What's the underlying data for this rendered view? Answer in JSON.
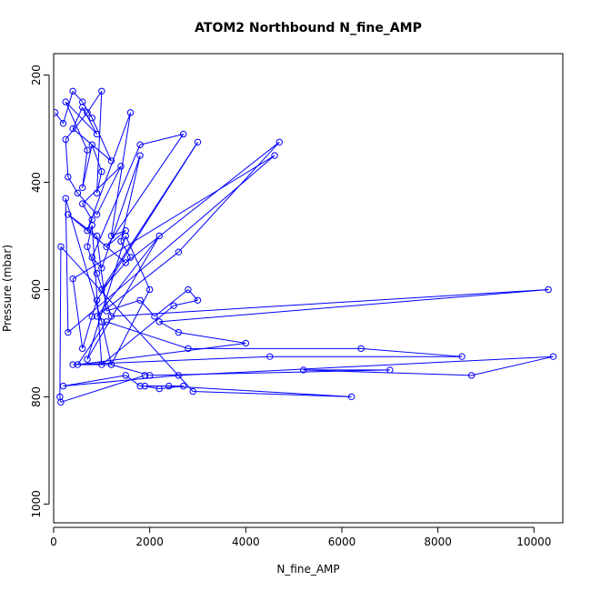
{
  "chart_data": {
    "type": "line",
    "title": "ATOM2 Northbound N_fine_AMP",
    "xlabel": "N_fine_AMP",
    "ylabel": "Pressure (mbar)",
    "xlim": [
      0,
      10600
    ],
    "ylim": [
      1035,
      160
    ],
    "y_reversed": true,
    "x_ticks": [
      0,
      2000,
      4000,
      6000,
      8000,
      10000
    ],
    "y_ticks": [
      200,
      400,
      600,
      800,
      1000
    ],
    "line_color": "#0000ff",
    "marker": "open-circle",
    "grid": false,
    "series": [
      {
        "x": [
          30,
          200,
          400,
          600,
          800,
          1200,
          400,
          600,
          900,
          250,
          700,
          600,
          800,
          1000,
          900,
          1000,
          700,
          250,
          300,
          500,
          900,
          1400,
          600,
          800,
          700,
          1600,
          1200,
          1500,
          1100,
          2700,
          1800,
          800,
          1000,
          1800,
          1400,
          1600,
          1000,
          3000,
          900,
          800,
          600,
          400,
          4600,
          300,
          250,
          1000,
          1200,
          2000,
          1500,
          700,
          2200,
          900,
          2600,
          4700,
          1500,
          300,
          900,
          1100,
          1800,
          2100,
          2800,
          3000,
          2500,
          1000,
          800,
          700,
          900,
          1200,
          10300,
          2200,
          2600,
          4000,
          500,
          1100,
          2800,
          6400,
          8500,
          4500,
          400,
          1200,
          2000,
          7000,
          5200,
          8700,
          10400,
          2600,
          200,
          1500,
          1800,
          2700,
          2200,
          1900,
          2400,
          6200,
          2900,
          150,
          130,
          150,
          1900
        ],
        "y": [
          270,
          290,
          230,
          250,
          280,
          360,
          300,
          260,
          310,
          250,
          340,
          410,
          330,
          380,
          420,
          230,
          270,
          320,
          390,
          420,
          460,
          370,
          440,
          470,
          490,
          270,
          500,
          490,
          520,
          310,
          330,
          540,
          560,
          350,
          510,
          540,
          600,
          325,
          620,
          650,
          710,
          580,
          350,
          680,
          430,
          660,
          740,
          600,
          500,
          730,
          500,
          650,
          530,
          325,
          550,
          460,
          500,
          640,
          620,
          650,
          600,
          620,
          630,
          740,
          480,
          520,
          570,
          650,
          600,
          660,
          680,
          700,
          740,
          660,
          710,
          710,
          725,
          725,
          740,
          740,
          760,
          750,
          750,
          760,
          725,
          760,
          780,
          760,
          780,
          780,
          785,
          780,
          780,
          800,
          790,
          520,
          800,
          810,
          760
        ]
      }
    ]
  }
}
